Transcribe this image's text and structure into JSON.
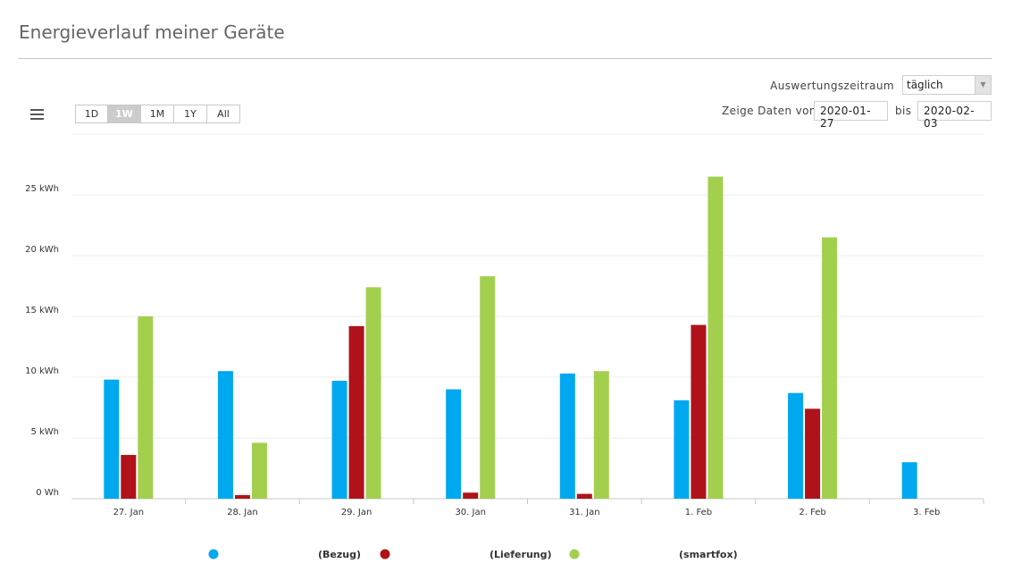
{
  "page": {
    "title": "Energieverlauf meiner Geräte"
  },
  "controls": {
    "period_label": "Auswertungszeitraum",
    "period_value": "täglich",
    "range_label": "Zeige Daten von",
    "from_date": "2020-01-27",
    "to_label": "bis",
    "to_date": "2020-02-03"
  },
  "toolbar": {
    "menu_icon": "hamburger-menu-icon",
    "zoom_buttons": [
      "1D",
      "1W",
      "1M",
      "1Y",
      "All"
    ],
    "zoom_active": "1W"
  },
  "chart_data": {
    "type": "bar",
    "categories": [
      "27. Jan",
      "28. Jan",
      "29. Jan",
      "30. Jan",
      "31. Jan",
      "1. Feb",
      "2. Feb",
      "3. Feb"
    ],
    "series": [
      {
        "name": "(Bezug)",
        "color": "#00a8f0",
        "values": [
          9.8,
          10.5,
          9.7,
          9.0,
          10.3,
          8.1,
          8.7,
          3.0
        ]
      },
      {
        "name": "(Lieferung)",
        "color": "#b0121a",
        "values": [
          3.6,
          0.3,
          14.2,
          0.5,
          0.4,
          14.3,
          7.4,
          0
        ]
      },
      {
        "name": "(smartfox)",
        "color": "#a3cf4f",
        "values": [
          15.0,
          4.6,
          17.4,
          18.3,
          10.5,
          26.5,
          21.5,
          0
        ]
      }
    ],
    "y_ticks": [
      "0 Wh",
      "5 kWh",
      "10 kWh",
      "15 kWh",
      "20 kWh",
      "25 kWh"
    ],
    "ylim": [
      0,
      30
    ],
    "grid": true,
    "legend_position": "bottom"
  }
}
